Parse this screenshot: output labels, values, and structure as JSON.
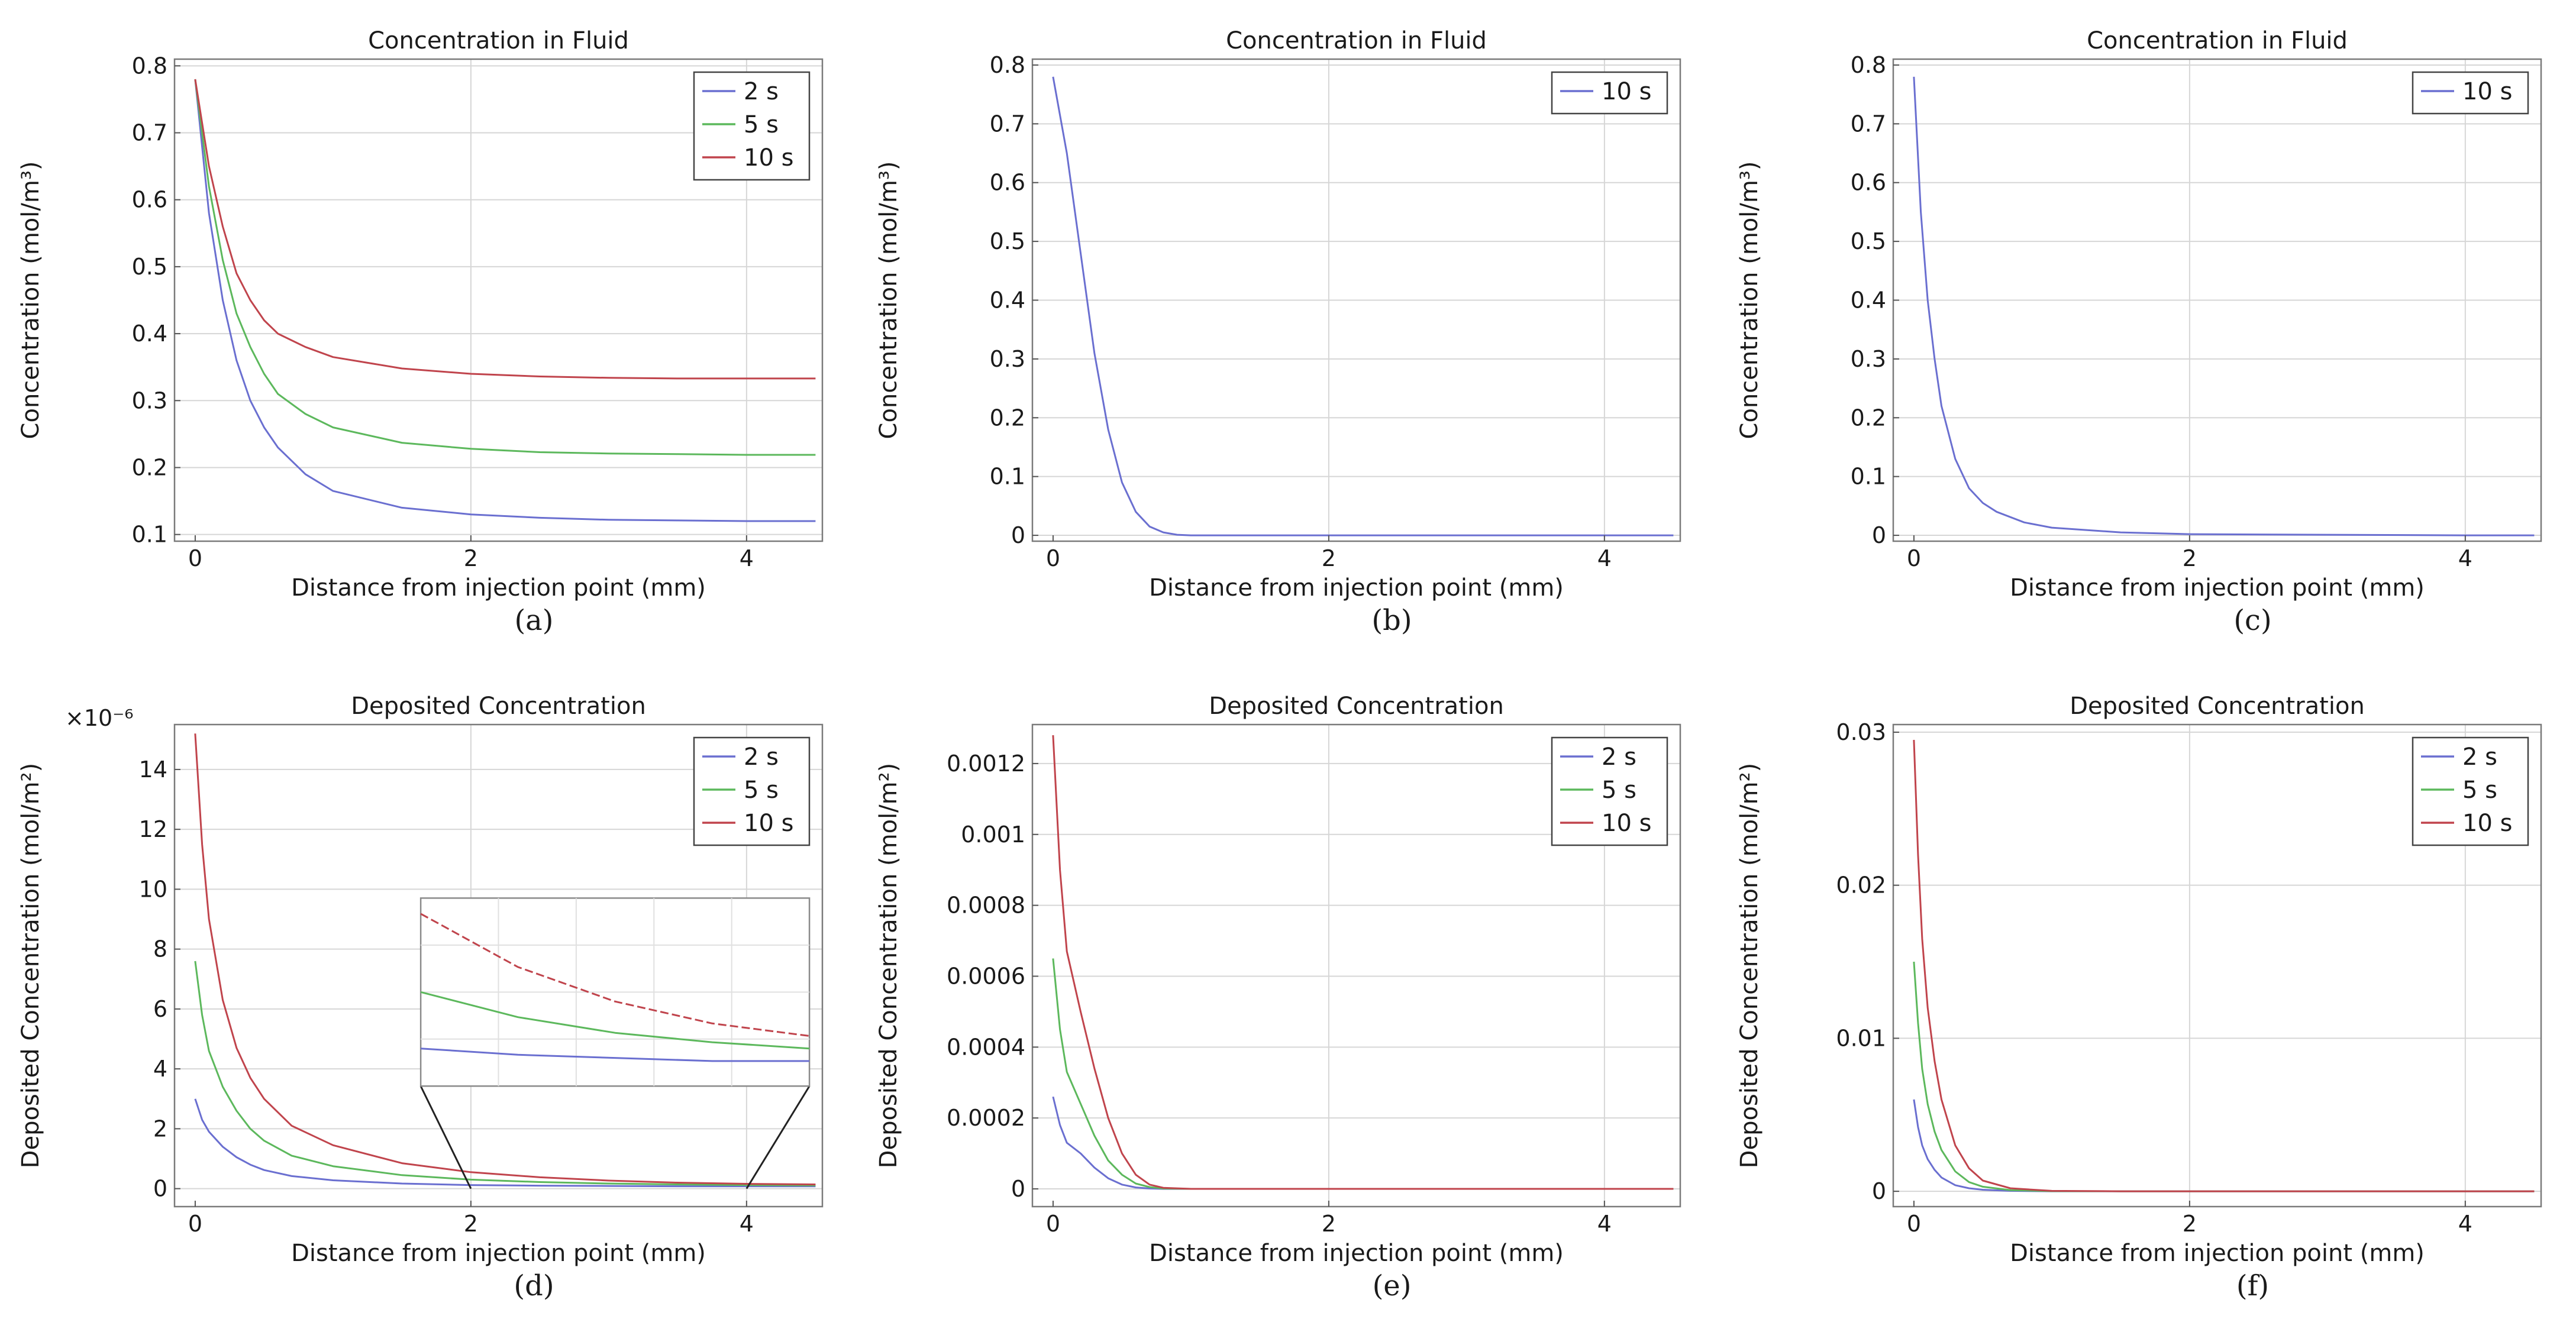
{
  "colors": {
    "s2": "#6a6fd0",
    "s5": "#5cb85c",
    "s10": "#c0444c"
  },
  "chart_data": [
    {
      "type": "line",
      "id": "a",
      "panel_label": "(a)",
      "title": "Concentration in Fluid",
      "xlabel": "Distance from injection point (mm)",
      "ylabel": "Concentration (mol/m³)",
      "xlim": [
        -0.15,
        4.55
      ],
      "ylim": [
        0.09,
        0.81
      ],
      "xticks": [
        0,
        2,
        4
      ],
      "xtick_labels": [
        "0",
        "2",
        "4"
      ],
      "yticks": [
        0.1,
        0.2,
        0.3,
        0.4,
        0.5,
        0.6,
        0.7,
        0.8
      ],
      "ytick_labels": [
        "0.1",
        "0.2",
        "0.3",
        "0.4",
        "0.5",
        "0.6",
        "0.7",
        "0.8"
      ],
      "legend": "top-right",
      "series": [
        {
          "name": "2 s",
          "color_key": "s2",
          "x": [
            0,
            0.1,
            0.2,
            0.3,
            0.4,
            0.5,
            0.6,
            0.8,
            1.0,
            1.5,
            2.0,
            2.5,
            3.0,
            3.5,
            4.0,
            4.5
          ],
          "y": [
            0.78,
            0.58,
            0.45,
            0.36,
            0.3,
            0.26,
            0.23,
            0.19,
            0.165,
            0.14,
            0.13,
            0.125,
            0.122,
            0.121,
            0.12,
            0.12
          ]
        },
        {
          "name": "5 s",
          "color_key": "s5",
          "x": [
            0,
            0.1,
            0.2,
            0.3,
            0.4,
            0.5,
            0.6,
            0.8,
            1.0,
            1.5,
            2.0,
            2.5,
            3.0,
            3.5,
            4.0,
            4.5
          ],
          "y": [
            0.78,
            0.62,
            0.51,
            0.43,
            0.38,
            0.34,
            0.31,
            0.28,
            0.26,
            0.237,
            0.228,
            0.223,
            0.221,
            0.22,
            0.219,
            0.219
          ]
        },
        {
          "name": "10 s",
          "color_key": "s10",
          "x": [
            0,
            0.1,
            0.2,
            0.3,
            0.4,
            0.5,
            0.6,
            0.8,
            1.0,
            1.5,
            2.0,
            2.5,
            3.0,
            3.5,
            4.0,
            4.5
          ],
          "y": [
            0.78,
            0.65,
            0.56,
            0.49,
            0.45,
            0.42,
            0.4,
            0.38,
            0.365,
            0.348,
            0.34,
            0.336,
            0.334,
            0.333,
            0.333,
            0.333
          ]
        }
      ]
    },
    {
      "type": "line",
      "id": "b",
      "panel_label": "(b)",
      "title": "Concentration in Fluid",
      "xlabel": "Distance from injection point (mm)",
      "ylabel": "Concentration (mol/m³)",
      "xlim": [
        -0.15,
        4.55
      ],
      "ylim": [
        -0.01,
        0.81
      ],
      "xticks": [
        0,
        2,
        4
      ],
      "xtick_labels": [
        "0",
        "2",
        "4"
      ],
      "yticks": [
        0,
        0.1,
        0.2,
        0.3,
        0.4,
        0.5,
        0.6,
        0.7,
        0.8
      ],
      "ytick_labels": [
        "0",
        "0.1",
        "0.2",
        "0.3",
        "0.4",
        "0.5",
        "0.6",
        "0.7",
        "0.8"
      ],
      "legend": "top-right",
      "series": [
        {
          "name": "10 s",
          "color_key": "s2",
          "x": [
            0,
            0.1,
            0.2,
            0.3,
            0.4,
            0.5,
            0.6,
            0.7,
            0.8,
            0.9,
            1.0,
            1.5,
            2.0,
            3.0,
            4.0,
            4.5
          ],
          "y": [
            0.78,
            0.65,
            0.48,
            0.31,
            0.18,
            0.09,
            0.04,
            0.015,
            0.005,
            0.001,
            0,
            0,
            0,
            0,
            0,
            0
          ]
        }
      ]
    },
    {
      "type": "line",
      "id": "c",
      "panel_label": "(c)",
      "title": "Concentration in Fluid",
      "xlabel": "Distance from injection point (mm)",
      "ylabel": "Concentration (mol/m³)",
      "xlim": [
        -0.15,
        4.55
      ],
      "ylim": [
        -0.01,
        0.81
      ],
      "xticks": [
        0,
        2,
        4
      ],
      "xtick_labels": [
        "0",
        "2",
        "4"
      ],
      "yticks": [
        0,
        0.1,
        0.2,
        0.3,
        0.4,
        0.5,
        0.6,
        0.7,
        0.8
      ],
      "ytick_labels": [
        "0",
        "0.1",
        "0.2",
        "0.3",
        "0.4",
        "0.5",
        "0.6",
        "0.7",
        "0.8"
      ],
      "legend": "top-right",
      "series": [
        {
          "name": "10 s",
          "color_key": "s2",
          "x": [
            0,
            0.05,
            0.1,
            0.15,
            0.2,
            0.3,
            0.4,
            0.5,
            0.6,
            0.8,
            1.0,
            1.5,
            2.0,
            3.0,
            4.0,
            4.5
          ],
          "y": [
            0.78,
            0.55,
            0.4,
            0.3,
            0.22,
            0.13,
            0.08,
            0.055,
            0.04,
            0.022,
            0.013,
            0.005,
            0.002,
            0.001,
            0,
            0
          ]
        }
      ]
    },
    {
      "type": "line",
      "id": "d",
      "panel_label": "(d)",
      "title": "Deposited Concentration",
      "xlabel": "Distance from injection point (mm)",
      "ylabel": "Deposited Concentration (mol/m²)",
      "y_multiplier": "×10⁻⁶",
      "xlim": [
        -0.15,
        4.55
      ],
      "ylim": [
        -0.6,
        15.5
      ],
      "xticks": [
        0,
        2,
        4
      ],
      "xtick_labels": [
        "0",
        "2",
        "4"
      ],
      "yticks": [
        0,
        2,
        4,
        6,
        8,
        10,
        12,
        14
      ],
      "ytick_labels": [
        "0",
        "2",
        "4",
        "6",
        "8",
        "10",
        "12",
        "14"
      ],
      "legend": "top-right",
      "inset": {
        "xlim": [
          2,
          4
        ],
        "ylim": [
          0,
          0.6
        ],
        "connector_x": [
          2,
          4
        ]
      },
      "series": [
        {
          "name": "2 s",
          "color_key": "s2",
          "x": [
            0,
            0.05,
            0.1,
            0.2,
            0.3,
            0.4,
            0.5,
            0.7,
            1.0,
            1.5,
            2.0,
            2.5,
            3.0,
            3.5,
            4.0,
            4.5
          ],
          "y": [
            3.0,
            2.3,
            1.9,
            1.4,
            1.05,
            0.8,
            0.62,
            0.42,
            0.28,
            0.17,
            0.12,
            0.1,
            0.09,
            0.08,
            0.08,
            0.08
          ]
        },
        {
          "name": "5 s",
          "color_key": "s5",
          "x": [
            0,
            0.05,
            0.1,
            0.2,
            0.3,
            0.4,
            0.5,
            0.7,
            1.0,
            1.5,
            2.0,
            2.5,
            3.0,
            3.5,
            4.0,
            4.5
          ],
          "y": [
            7.6,
            5.8,
            4.6,
            3.4,
            2.6,
            2.0,
            1.6,
            1.1,
            0.75,
            0.45,
            0.3,
            0.22,
            0.17,
            0.14,
            0.12,
            0.11
          ]
        },
        {
          "name": "10 s",
          "color_key": "s10",
          "x": [
            0,
            0.05,
            0.1,
            0.2,
            0.3,
            0.4,
            0.5,
            0.7,
            1.0,
            1.5,
            2.0,
            2.5,
            3.0,
            3.5,
            4.0,
            4.5
          ],
          "y": [
            15.2,
            11.5,
            9.0,
            6.3,
            4.7,
            3.7,
            3.0,
            2.1,
            1.45,
            0.85,
            0.55,
            0.38,
            0.27,
            0.2,
            0.16,
            0.14
          ]
        }
      ]
    },
    {
      "type": "line",
      "id": "e",
      "panel_label": "(e)",
      "title": "Deposited Concentration",
      "xlabel": "Distance from injection point (mm)",
      "ylabel": "Deposited Concentration (mol/m²)",
      "xlim": [
        -0.15,
        4.55
      ],
      "ylim": [
        -5e-05,
        0.00131
      ],
      "xticks": [
        0,
        2,
        4
      ],
      "xtick_labels": [
        "0",
        "2",
        "4"
      ],
      "yticks": [
        0,
        0.0002,
        0.0004,
        0.0006,
        0.0008,
        0.001,
        0.0012
      ],
      "ytick_labels": [
        "0",
        "0.0002",
        "0.0004",
        "0.0006",
        "0.0008",
        "0.001",
        "0.0012"
      ],
      "legend": "top-right",
      "series": [
        {
          "name": "2 s",
          "color_key": "s2",
          "x": [
            0,
            0.05,
            0.1,
            0.2,
            0.3,
            0.4,
            0.5,
            0.6,
            0.7,
            0.8,
            1.0,
            1.5,
            2.0,
            3.0,
            4.0,
            4.5
          ],
          "y": [
            0.00026,
            0.00018,
            0.00013,
            0.0001,
            6e-05,
            3e-05,
            1.2e-05,
            4e-06,
            1e-06,
            0,
            0,
            0,
            0,
            0,
            0,
            0
          ]
        },
        {
          "name": "5 s",
          "color_key": "s5",
          "x": [
            0,
            0.05,
            0.1,
            0.2,
            0.3,
            0.4,
            0.5,
            0.6,
            0.7,
            0.8,
            1.0,
            1.5,
            2.0,
            3.0,
            4.0,
            4.5
          ],
          "y": [
            0.00065,
            0.00045,
            0.00033,
            0.00024,
            0.00015,
            8e-05,
            4e-05,
            1.5e-05,
            5e-06,
            1e-06,
            0,
            0,
            0,
            0,
            0,
            0
          ]
        },
        {
          "name": "10 s",
          "color_key": "s10",
          "x": [
            0,
            0.05,
            0.1,
            0.2,
            0.3,
            0.4,
            0.5,
            0.6,
            0.7,
            0.8,
            1.0,
            1.5,
            2.0,
            3.0,
            4.0,
            4.5
          ],
          "y": [
            0.00128,
            0.0009,
            0.00067,
            0.0005,
            0.00034,
            0.0002,
            0.0001,
            4e-05,
            1.2e-05,
            3e-06,
            0,
            0,
            0,
            0,
            0,
            0
          ]
        }
      ]
    },
    {
      "type": "line",
      "id": "f",
      "panel_label": "(f)",
      "title": "Deposited Concentration",
      "xlabel": "Distance from injection point (mm)",
      "ylabel": "Deposited Concentration (mol/m²)",
      "xlim": [
        -0.15,
        4.55
      ],
      "ylim": [
        -0.001,
        0.0305
      ],
      "xticks": [
        0,
        2,
        4
      ],
      "xtick_labels": [
        "0",
        "2",
        "4"
      ],
      "yticks": [
        0,
        0.01,
        0.02,
        0.03
      ],
      "ytick_labels": [
        "0",
        "0.01",
        "0.02",
        "0.03"
      ],
      "legend": "top-right",
      "series": [
        {
          "name": "2 s",
          "color_key": "s2",
          "x": [
            0,
            0.03,
            0.06,
            0.1,
            0.15,
            0.2,
            0.3,
            0.4,
            0.5,
            0.7,
            1.0,
            1.5,
            2.0,
            3.0,
            4.0,
            4.5
          ],
          "y": [
            0.006,
            0.0042,
            0.003,
            0.0021,
            0.0014,
            0.0009,
            0.0004,
            0.0002,
            0.0001,
            3e-05,
            0,
            0,
            0,
            0,
            0,
            0
          ]
        },
        {
          "name": "5 s",
          "color_key": "s5",
          "x": [
            0,
            0.03,
            0.06,
            0.1,
            0.15,
            0.2,
            0.3,
            0.4,
            0.5,
            0.7,
            1.0,
            1.5,
            2.0,
            3.0,
            4.0,
            4.5
          ],
          "y": [
            0.015,
            0.011,
            0.008,
            0.0057,
            0.0039,
            0.0027,
            0.0013,
            0.0006,
            0.0003,
            8e-05,
            1e-05,
            0,
            0,
            0,
            0,
            0
          ]
        },
        {
          "name": "10 s",
          "color_key": "s10",
          "x": [
            0,
            0.03,
            0.06,
            0.1,
            0.15,
            0.2,
            0.3,
            0.4,
            0.5,
            0.7,
            1.0,
            1.5,
            2.0,
            3.0,
            4.0,
            4.5
          ],
          "y": [
            0.0295,
            0.022,
            0.0165,
            0.012,
            0.0085,
            0.006,
            0.003,
            0.0015,
            0.0007,
            0.0002,
            3e-05,
            0,
            0,
            0,
            0,
            0
          ]
        }
      ]
    }
  ]
}
